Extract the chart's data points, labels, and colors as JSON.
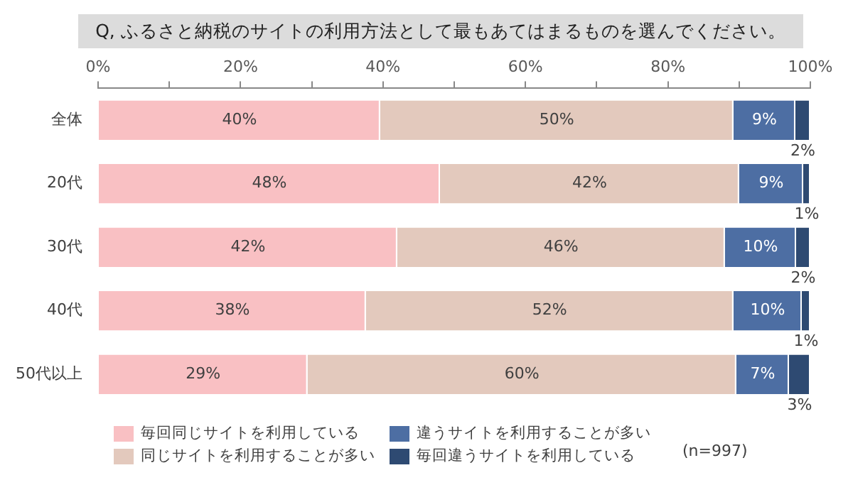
{
  "chart_data": {
    "type": "bar",
    "orientation": "horizontal",
    "stacked": true,
    "title": "Q, ふるさと納税のサイトの利用方法として最もあてはまるものを選んでください。",
    "categories": [
      "全体",
      "20代",
      "30代",
      "40代",
      "50代以上"
    ],
    "series": [
      {
        "name": "毎回同じサイトを利用している",
        "color": "#f9c0c3",
        "values": [
          39.6,
          48,
          42,
          37.6,
          29.4
        ],
        "value_labels": [
          "40%",
          "48%",
          "42%",
          "38%",
          "29%"
        ]
      },
      {
        "name": "同じサイトを利用することが多い",
        "color": "#e3c9bd",
        "values": [
          49.6,
          42,
          46,
          51.6,
          60.2
        ],
        "value_labels": [
          "50%",
          "42%",
          "46%",
          "52%",
          "60%"
        ]
      },
      {
        "name": "違うサイトを利用することが多い",
        "color": "#4d6ea3",
        "values": [
          8.7,
          9,
          10,
          9.6,
          7.4
        ],
        "value_labels": [
          "9%",
          "9%",
          "10%",
          "10%",
          "7%"
        ]
      },
      {
        "name": "毎回違うサイトを利用している",
        "color": "#2e4a72",
        "values": [
          2.1,
          1,
          2,
          1.2,
          3
        ],
        "value_labels": [
          "2%",
          "1%",
          "2%",
          "1%",
          "3%"
        ]
      }
    ],
    "xlim": [
      0,
      100
    ],
    "xticks": [
      {
        "value": 0,
        "label": "0%"
      },
      {
        "value": 10,
        "label": null
      },
      {
        "value": 20,
        "label": "20%"
      },
      {
        "value": 30,
        "label": null
      },
      {
        "value": 40,
        "label": "40%"
      },
      {
        "value": 50,
        "label": null
      },
      {
        "value": 60,
        "label": "60%"
      },
      {
        "value": 70,
        "label": null
      },
      {
        "value": 80,
        "label": "80%"
      },
      {
        "value": 90,
        "label": null
      },
      {
        "value": 100,
        "label": "100%"
      }
    ],
    "grid": false,
    "legend": "bottom left",
    "annotations": [
      "(n=997)"
    ]
  }
}
